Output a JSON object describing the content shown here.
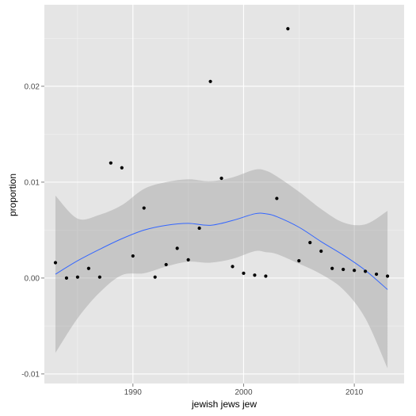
{
  "chart_data": {
    "type": "scatter",
    "xlabel": "jewish jews jew",
    "ylabel": "proportion",
    "xlim": [
      1982,
      2014.5
    ],
    "ylim": [
      -0.011,
      0.0285
    ],
    "x_ticks": [
      1990,
      2000,
      2010
    ],
    "x_tick_labels": [
      "1990",
      "2000",
      "2010"
    ],
    "y_ticks": [
      -0.01,
      0.0,
      0.01,
      0.02
    ],
    "y_tick_labels": [
      "-0.01",
      "0.00",
      "0.01",
      "0.02"
    ],
    "grid": true,
    "legend": "none",
    "colors": {
      "panel_background": "#e5e5e5",
      "grid_major": "#ffffff",
      "grid_minor": "#f2f2f2",
      "points": "#000000",
      "smooth_line": "#3366ff",
      "confidence_band": "#999999"
    },
    "points": {
      "x": [
        1983,
        1984,
        1985,
        1986,
        1987,
        1988,
        1989,
        1990,
        1991,
        1992,
        1993,
        1994,
        1995,
        1996,
        1997,
        1998,
        1999,
        2000,
        2001,
        2002,
        2003,
        2004,
        2005,
        2006,
        2007,
        2008,
        2009,
        2010,
        2011,
        2012,
        2013
      ],
      "y": [
        0.0016,
        0.0,
        0.0001,
        0.001,
        0.0001,
        0.012,
        0.0115,
        0.0023,
        0.0073,
        0.0001,
        0.0014,
        0.0031,
        0.0019,
        0.0052,
        0.0205,
        0.0104,
        0.0012,
        0.0005,
        0.0003,
        0.0002,
        0.0083,
        0.026,
        0.0018,
        0.0037,
        0.0028,
        0.001,
        0.0009,
        0.0008,
        0.0007,
        0.0004,
        0.0002
      ]
    },
    "smooth": {
      "x": [
        1983,
        1985,
        1987,
        1989,
        1991,
        1993,
        1995,
        1997,
        1999,
        2001,
        2002,
        2003,
        2005,
        2007,
        2009,
        2011,
        2013
      ],
      "y": [
        0.0004,
        0.0018,
        0.003,
        0.0041,
        0.005,
        0.0055,
        0.0057,
        0.0055,
        0.006,
        0.0067,
        0.0067,
        0.0064,
        0.0053,
        0.0038,
        0.0024,
        0.0008,
        -0.0012
      ],
      "lower": [
        -0.0078,
        -0.0042,
        -0.0015,
        0.0003,
        0.0005,
        0.0012,
        0.0017,
        0.0016,
        0.002,
        0.0028,
        0.0027,
        0.0025,
        0.0015,
        0.0004,
        -0.0012,
        -0.0042,
        -0.0094
      ],
      "upper": [
        0.0086,
        0.0062,
        0.0066,
        0.0076,
        0.0093,
        0.01,
        0.0103,
        0.0101,
        0.0105,
        0.0113,
        0.0112,
        0.0106,
        0.009,
        0.0072,
        0.0058,
        0.0056,
        0.007
      ]
    }
  }
}
